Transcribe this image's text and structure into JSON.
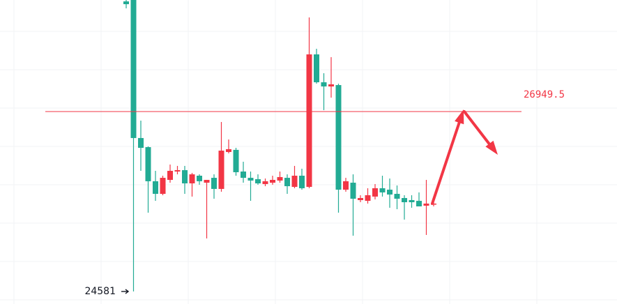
{
  "chart_data": {
    "type": "candlestick",
    "ylim": [
      24416,
      28418
    ],
    "up_color": "#f23645",
    "down_color": "#22ab94",
    "hline": 26949.5,
    "hline_color": "#f23645",
    "low_label": 24581,
    "series": [
      {
        "open": [
          28400,
          28418,
          26601,
          26481,
          26032,
          25866,
          26050,
          26160,
          26178,
          26004,
          26105,
          26013,
          26077,
          25931,
          26417,
          26445,
          26160,
          26077,
          26059,
          25995,
          26013,
          26041,
          26077,
          25958,
          26105,
          25958,
          27702,
          27335,
          27280,
          27298,
          25921,
          26013,
          25784,
          25774,
          25830,
          25940,
          25921,
          25866,
          25811,
          25784,
          25774,
          25710,
          25729
        ],
        "high": [
          28418,
          28418,
          26830,
          26491,
          26169,
          26105,
          26252,
          26234,
          26234,
          26142,
          26123,
          26050,
          26123,
          26812,
          26582,
          26472,
          26289,
          26160,
          26123,
          26068,
          26105,
          26160,
          26123,
          26234,
          26197,
          28189,
          27776,
          27454,
          27666,
          27317,
          26077,
          26123,
          25848,
          25940,
          25995,
          26105,
          26068,
          25976,
          25848,
          25848,
          25885,
          26050,
          25756
        ],
        "low": [
          28308,
          24581,
          26169,
          25618,
          25774,
          25848,
          26013,
          26123,
          25866,
          25830,
          25986,
          25279,
          25802,
          25894,
          26399,
          26105,
          26013,
          25774,
          25986,
          25967,
          25986,
          26013,
          25866,
          25940,
          25921,
          25940,
          27317,
          26968,
          27133,
          25618,
          25894,
          25315,
          25756,
          25738,
          25793,
          25830,
          25683,
          25664,
          25527,
          25683,
          25701,
          25325,
          25701
        ],
        "close": [
          28363,
          26601,
          26472,
          26032,
          25866,
          26077,
          26169,
          26178,
          26004,
          26123,
          26032,
          26050,
          25931,
          26435,
          26454,
          26151,
          26077,
          26041,
          26004,
          26032,
          26050,
          26087,
          25967,
          26105,
          25940,
          27702,
          27335,
          27280,
          27308,
          25921,
          26032,
          25802,
          25811,
          25848,
          25940,
          25885,
          25857,
          25802,
          25756,
          25756,
          25701,
          25738,
          25738
        ]
      }
    ]
  }
}
